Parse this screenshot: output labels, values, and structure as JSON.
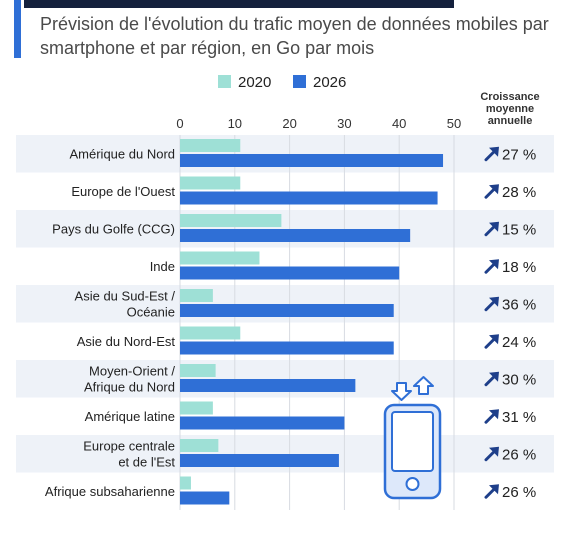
{
  "subtitle": "Prévision de l'évolution du trafic moyen de données mobiles par smartphone et par région, en Go par mois",
  "colors": {
    "2020": "#9ee0d6",
    "2026": "#2f6fd6",
    "row_band": "#eef2f8",
    "accent": "#2f6fd6",
    "arrow": "#1e3f8a"
  },
  "growth_header": [
    "Croissance",
    "moyenne",
    "annuelle"
  ],
  "chart_data": {
    "type": "bar",
    "orientation": "horizontal",
    "title": "Prévision de l'évolution du trafic moyen de données mobiles par smartphone et par région, en Go par mois",
    "xlim": [
      0,
      50
    ],
    "xticks": [
      0,
      10,
      20,
      30,
      40,
      50
    ],
    "grid": true,
    "legend_position": "top",
    "categories": [
      "Amérique du Nord",
      "Europe de l'Ouest",
      "Pays du Golfe (CCG)",
      "Inde",
      "Asie du Sud-Est / Océanie",
      "Asie du Nord-Est",
      "Moyen-Orient / Afrique du Nord",
      "Amérique latine",
      "Europe centrale et de l'Est",
      "Afrique subsaharienne"
    ],
    "category_lines": [
      [
        "Amérique du Nord"
      ],
      [
        "Europe de l'Ouest"
      ],
      [
        "Pays du Golfe (CCG)"
      ],
      [
        "Inde"
      ],
      [
        "Asie du Sud-Est /",
        "Océanie"
      ],
      [
        "Asie du Nord-Est"
      ],
      [
        "Moyen-Orient /",
        "Afrique du Nord"
      ],
      [
        "Amérique latine"
      ],
      [
        "Europe centrale",
        "et de l'Est"
      ],
      [
        "Afrique subsaharienne"
      ]
    ],
    "series": [
      {
        "name": "2020",
        "values": [
          11,
          11,
          18.5,
          14.5,
          6,
          11,
          6.5,
          6,
          7,
          2
        ]
      },
      {
        "name": "2026",
        "values": [
          48,
          47,
          42,
          40,
          39,
          39,
          32,
          30,
          29,
          9
        ]
      }
    ],
    "growth": [
      "27 %",
      "28 %",
      "15 %",
      "18 %",
      "36 %",
      "24 %",
      "30 %",
      "31 %",
      "26 %",
      "26 %"
    ]
  }
}
